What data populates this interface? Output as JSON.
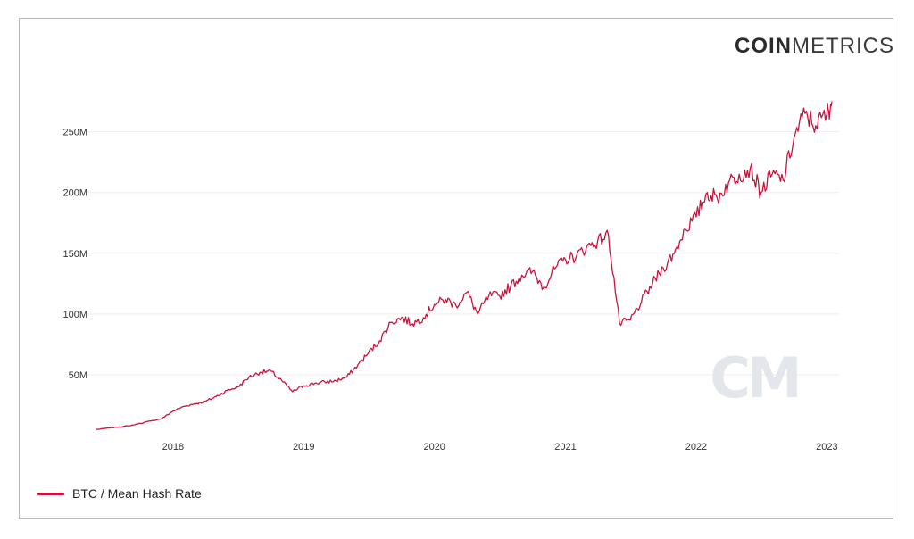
{
  "brand": {
    "logo_bold": "COIN",
    "logo_light": "METRICS",
    "watermark": "CM"
  },
  "colors": {
    "series": "#c8143c",
    "grid": "#eeeeee",
    "watermark": "#e3e6ea"
  },
  "chart_data": {
    "type": "line",
    "title": "",
    "xlabel": "",
    "ylabel": "",
    "xlim": [
      "2017-06-01",
      "2023-01-15"
    ],
    "ylim": [
      0,
      285000000
    ],
    "x_ticks": [
      "2018",
      "2019",
      "2020",
      "2021",
      "2022",
      "2023"
    ],
    "y_ticks": [
      "50M",
      "100M",
      "150M",
      "200M",
      "250M"
    ],
    "grid": "horizontal",
    "legend": "bottom-left",
    "series": [
      {
        "name": "BTC / Mean Hash Rate",
        "x": [
          "2017-06-01",
          "2017-07-01",
          "2017-08-01",
          "2017-09-01",
          "2017-10-01",
          "2017-11-01",
          "2017-12-01",
          "2018-01-01",
          "2018-02-01",
          "2018-03-01",
          "2018-04-01",
          "2018-05-01",
          "2018-06-01",
          "2018-07-01",
          "2018-08-01",
          "2018-09-01",
          "2018-10-01",
          "2018-11-01",
          "2018-12-01",
          "2019-01-01",
          "2019-02-01",
          "2019-03-01",
          "2019-04-01",
          "2019-05-01",
          "2019-06-01",
          "2019-07-01",
          "2019-08-01",
          "2019-09-01",
          "2019-10-01",
          "2019-11-01",
          "2019-12-01",
          "2020-01-01",
          "2020-02-01",
          "2020-03-01",
          "2020-04-01",
          "2020-05-01",
          "2020-06-01",
          "2020-07-01",
          "2020-08-01",
          "2020-09-01",
          "2020-10-01",
          "2020-11-01",
          "2020-12-01",
          "2021-01-01",
          "2021-02-01",
          "2021-03-01",
          "2021-04-01",
          "2021-05-01",
          "2021-06-01",
          "2021-07-01",
          "2021-08-01",
          "2021-09-01",
          "2021-10-01",
          "2021-11-01",
          "2021-12-01",
          "2022-01-01",
          "2022-02-01",
          "2022-03-01",
          "2022-04-01",
          "2022-05-01",
          "2022-06-01",
          "2022-07-01",
          "2022-08-01",
          "2022-09-01",
          "2022-10-01",
          "2022-11-01",
          "2022-12-01",
          "2023-01-01",
          "2023-01-15"
        ],
        "y": [
          5000000,
          6000000,
          7000000,
          8000000,
          10000000,
          12000000,
          14000000,
          20000000,
          24000000,
          26000000,
          28000000,
          32000000,
          37000000,
          40000000,
          48000000,
          52000000,
          53000000,
          45000000,
          36000000,
          41000000,
          43000000,
          44000000,
          45000000,
          48000000,
          58000000,
          68000000,
          78000000,
          93000000,
          97000000,
          92000000,
          97000000,
          108000000,
          112000000,
          107000000,
          118000000,
          100000000,
          115000000,
          115000000,
          123000000,
          132000000,
          135000000,
          122000000,
          137000000,
          145000000,
          148000000,
          155000000,
          160000000,
          165000000,
          92000000,
          95000000,
          110000000,
          125000000,
          138000000,
          150000000,
          170000000,
          180000000,
          200000000,
          195000000,
          208000000,
          215000000,
          220000000,
          200000000,
          215000000,
          210000000,
          245000000,
          265000000,
          255000000,
          265000000,
          275000000
        ]
      }
    ]
  }
}
